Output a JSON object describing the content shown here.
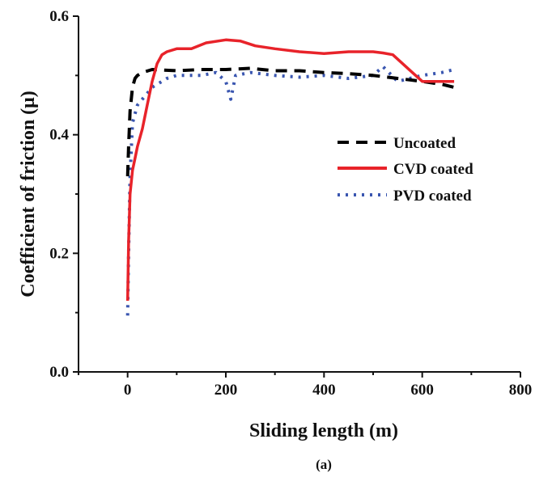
{
  "chart_data": {
    "type": "line",
    "xlabel": "Sliding length (m)",
    "ylabel": "Coefficient of friction (μ)",
    "caption": "(a)",
    "xlim": [
      -100,
      800
    ],
    "ylim": [
      0.0,
      0.6
    ],
    "x_ticks": [
      0,
      200,
      400,
      600,
      800
    ],
    "x_tick_labels": [
      "0",
      "200",
      "400",
      "600",
      "800"
    ],
    "y_ticks": [
      0.0,
      0.2,
      0.4,
      0.6
    ],
    "y_tick_labels": [
      "0.0",
      "0.2",
      "0.4",
      "0.6"
    ],
    "grid": false,
    "legend_position": "center-right",
    "series": [
      {
        "name": "Uncoated",
        "color": "#000000",
        "style": "dashed",
        "x": [
          0,
          2,
          5,
          10,
          15,
          20,
          30,
          50,
          100,
          150,
          200,
          250,
          300,
          350,
          400,
          450,
          500,
          550,
          600,
          640,
          665
        ],
        "y": [
          0.33,
          0.38,
          0.44,
          0.48,
          0.495,
          0.5,
          0.505,
          0.51,
          0.508,
          0.51,
          0.51,
          0.512,
          0.508,
          0.508,
          0.505,
          0.503,
          0.5,
          0.495,
          0.49,
          0.485,
          0.48
        ]
      },
      {
        "name": "CVD coated",
        "color": "#e8232a",
        "style": "solid",
        "x": [
          0,
          2,
          5,
          10,
          15,
          20,
          30,
          40,
          50,
          60,
          70,
          80,
          100,
          130,
          160,
          200,
          230,
          260,
          300,
          350,
          400,
          450,
          500,
          520,
          540,
          560,
          580,
          600,
          630,
          665
        ],
        "y": [
          0.12,
          0.22,
          0.3,
          0.34,
          0.36,
          0.38,
          0.41,
          0.45,
          0.49,
          0.52,
          0.535,
          0.54,
          0.545,
          0.545,
          0.555,
          0.56,
          0.558,
          0.55,
          0.545,
          0.54,
          0.537,
          0.54,
          0.54,
          0.538,
          0.535,
          0.52,
          0.505,
          0.49,
          0.49,
          0.49
        ]
      },
      {
        "name": "PVD coated",
        "color": "#3a56b0",
        "style": "dotted",
        "x": [
          0,
          2,
          5,
          10,
          20,
          30,
          50,
          80,
          100,
          150,
          180,
          200,
          210,
          220,
          250,
          300,
          350,
          400,
          450,
          500,
          520,
          550,
          600,
          640,
          665
        ],
        "y": [
          0.095,
          0.2,
          0.33,
          0.42,
          0.45,
          0.46,
          0.48,
          0.495,
          0.5,
          0.5,
          0.505,
          0.49,
          0.46,
          0.5,
          0.505,
          0.5,
          0.497,
          0.5,
          0.495,
          0.5,
          0.515,
          0.49,
          0.5,
          0.505,
          0.51
        ]
      }
    ]
  }
}
